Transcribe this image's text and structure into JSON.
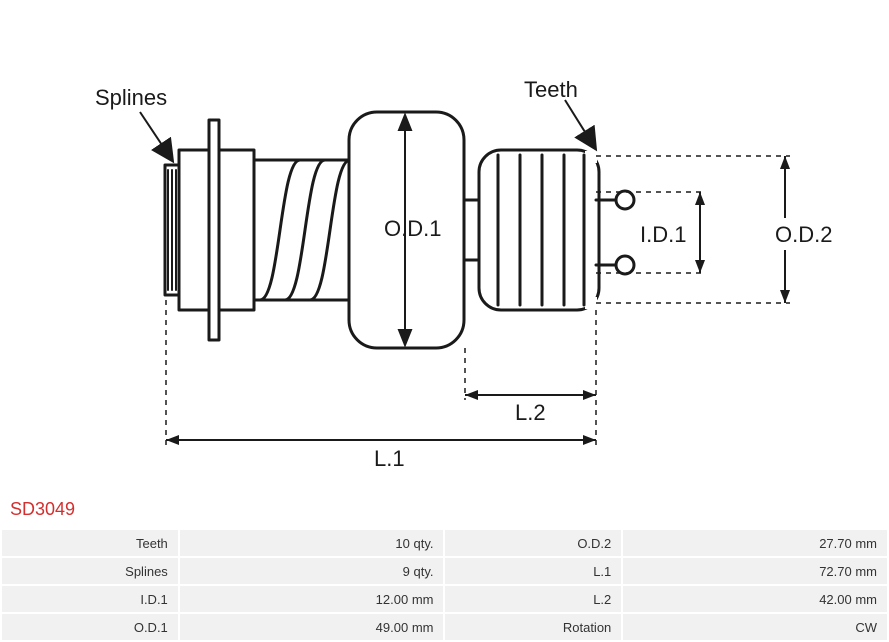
{
  "partNumber": "SD3049",
  "diagram": {
    "labels": {
      "splines": "Splines",
      "teeth": "Teeth",
      "od1": "O.D.1",
      "od2": "O.D.2",
      "id1": "I.D.1",
      "l1": "L.1",
      "l2": "L.2"
    },
    "colors": {
      "stroke": "#1a1a1a",
      "strokeWidth": 3,
      "dimStroke": "#1a1a1a",
      "dimWidth": 1.5,
      "dashed": "5,5"
    }
  },
  "specs": {
    "rows": [
      {
        "k1": "Teeth",
        "v1": "10 qty.",
        "k2": "O.D.2",
        "v2": "27.70 mm"
      },
      {
        "k1": "Splines",
        "v1": "9 qty.",
        "k2": "L.1",
        "v2": "72.70 mm"
      },
      {
        "k1": "I.D.1",
        "v1": "12.00 mm",
        "k2": "L.2",
        "v2": "42.00 mm"
      },
      {
        "k1": "O.D.1",
        "v1": "49.00 mm",
        "k2": "Rotation",
        "v2": "CW"
      }
    ]
  }
}
